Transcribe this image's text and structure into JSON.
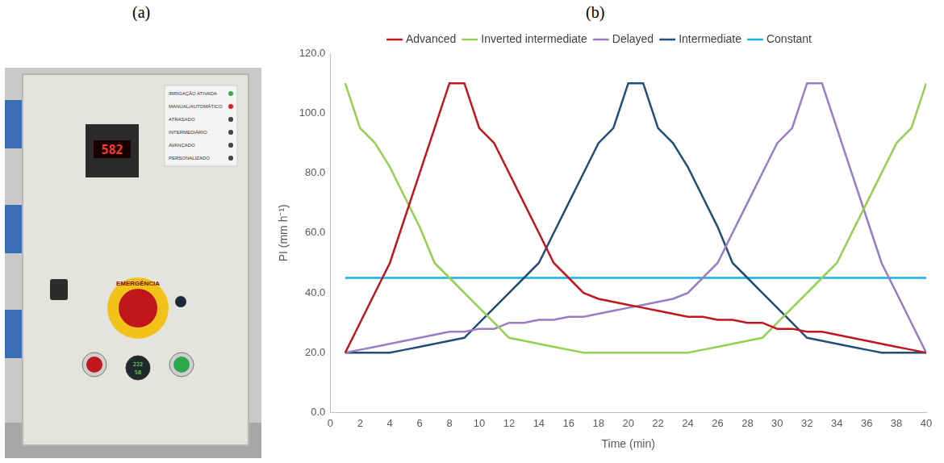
{
  "panel_labels": [
    "(a)",
    "(b)"
  ],
  "photo": {
    "display": "582",
    "emergency_label": "EMERGÊNCIA",
    "meter": [
      "222",
      "58"
    ],
    "indicator_labels": [
      "IRRIGAÇÃO ATIVADA",
      "MANUAL/AUTOMÁTICO",
      "ATRASADO",
      "INTERMEDIÁRIO",
      "AVANÇADO",
      "PERSONALIZADO"
    ]
  },
  "chart_data": {
    "type": "line",
    "x_label": "Time (min)",
    "y_label": "PI (mm h⁻¹)",
    "x": [
      1,
      2,
      3,
      4,
      5,
      6,
      7,
      8,
      9,
      10,
      11,
      12,
      13,
      14,
      15,
      16,
      17,
      18,
      19,
      20,
      21,
      22,
      23,
      24,
      25,
      26,
      27,
      28,
      29,
      30,
      31,
      32,
      33,
      34,
      35,
      36,
      37,
      38,
      39,
      40
    ],
    "series": [
      {
        "name": "Advanced",
        "color": "#c0161c",
        "values": [
          20,
          30,
          40,
          50,
          65,
          80,
          95,
          110,
          110,
          95,
          90,
          80,
          70,
          60,
          50,
          45,
          40,
          38,
          37,
          36,
          35,
          34,
          33,
          32,
          32,
          31,
          31,
          30,
          30,
          28,
          28,
          27,
          27,
          26,
          25,
          24,
          23,
          22,
          21,
          20
        ]
      },
      {
        "name": "Inverted intermediate",
        "color": "#92d050",
        "values": [
          110,
          95,
          90,
          82,
          72,
          62,
          50,
          45,
          40,
          35,
          30,
          25,
          24,
          23,
          22,
          21,
          20,
          20,
          20,
          20,
          20,
          20,
          20,
          20,
          21,
          22,
          23,
          24,
          25,
          30,
          35,
          40,
          45,
          50,
          60,
          70,
          80,
          90,
          95,
          110
        ]
      },
      {
        "name": "Delayed",
        "color": "#9b7cc4",
        "values": [
          20,
          21,
          22,
          23,
          24,
          25,
          26,
          27,
          27,
          28,
          28,
          30,
          30,
          31,
          31,
          32,
          32,
          33,
          34,
          35,
          36,
          37,
          38,
          40,
          45,
          50,
          60,
          70,
          80,
          90,
          95,
          110,
          110,
          95,
          80,
          65,
          50,
          40,
          30,
          20
        ]
      },
      {
        "name": "Intermediate",
        "color": "#1f4e79",
        "values": [
          20,
          20,
          20,
          20,
          21,
          22,
          23,
          24,
          25,
          30,
          35,
          40,
          45,
          50,
          60,
          70,
          80,
          90,
          95,
          110,
          110,
          95,
          90,
          82,
          72,
          62,
          50,
          45,
          40,
          35,
          30,
          25,
          24,
          23,
          22,
          21,
          20,
          20,
          20,
          20
        ]
      },
      {
        "name": "Constant",
        "color": "#1ab0e8",
        "values": [
          45,
          45,
          45,
          45,
          45,
          45,
          45,
          45,
          45,
          45,
          45,
          45,
          45,
          45,
          45,
          45,
          45,
          45,
          45,
          45,
          45,
          45,
          45,
          45,
          45,
          45,
          45,
          45,
          45,
          45,
          45,
          45,
          45,
          45,
          45,
          45,
          45,
          45,
          45,
          45
        ]
      }
    ],
    "xlim": [
      0,
      40
    ],
    "xticks": [
      0,
      2,
      4,
      6,
      8,
      10,
      12,
      14,
      16,
      18,
      20,
      22,
      24,
      26,
      28,
      30,
      32,
      34,
      36,
      38,
      40
    ],
    "ylim": [
      0,
      120
    ],
    "yticks": [
      {
        "value": 0,
        "label": "0.0"
      },
      {
        "value": 20,
        "label": "20.0"
      },
      {
        "value": 40,
        "label": "40.0"
      },
      {
        "value": 60,
        "label": "60.0"
      },
      {
        "value": 80,
        "label": "80.0"
      },
      {
        "value": 100,
        "label": "100.0"
      },
      {
        "value": 120,
        "label": "120.0"
      }
    ],
    "grid": false,
    "legend": "top"
  }
}
